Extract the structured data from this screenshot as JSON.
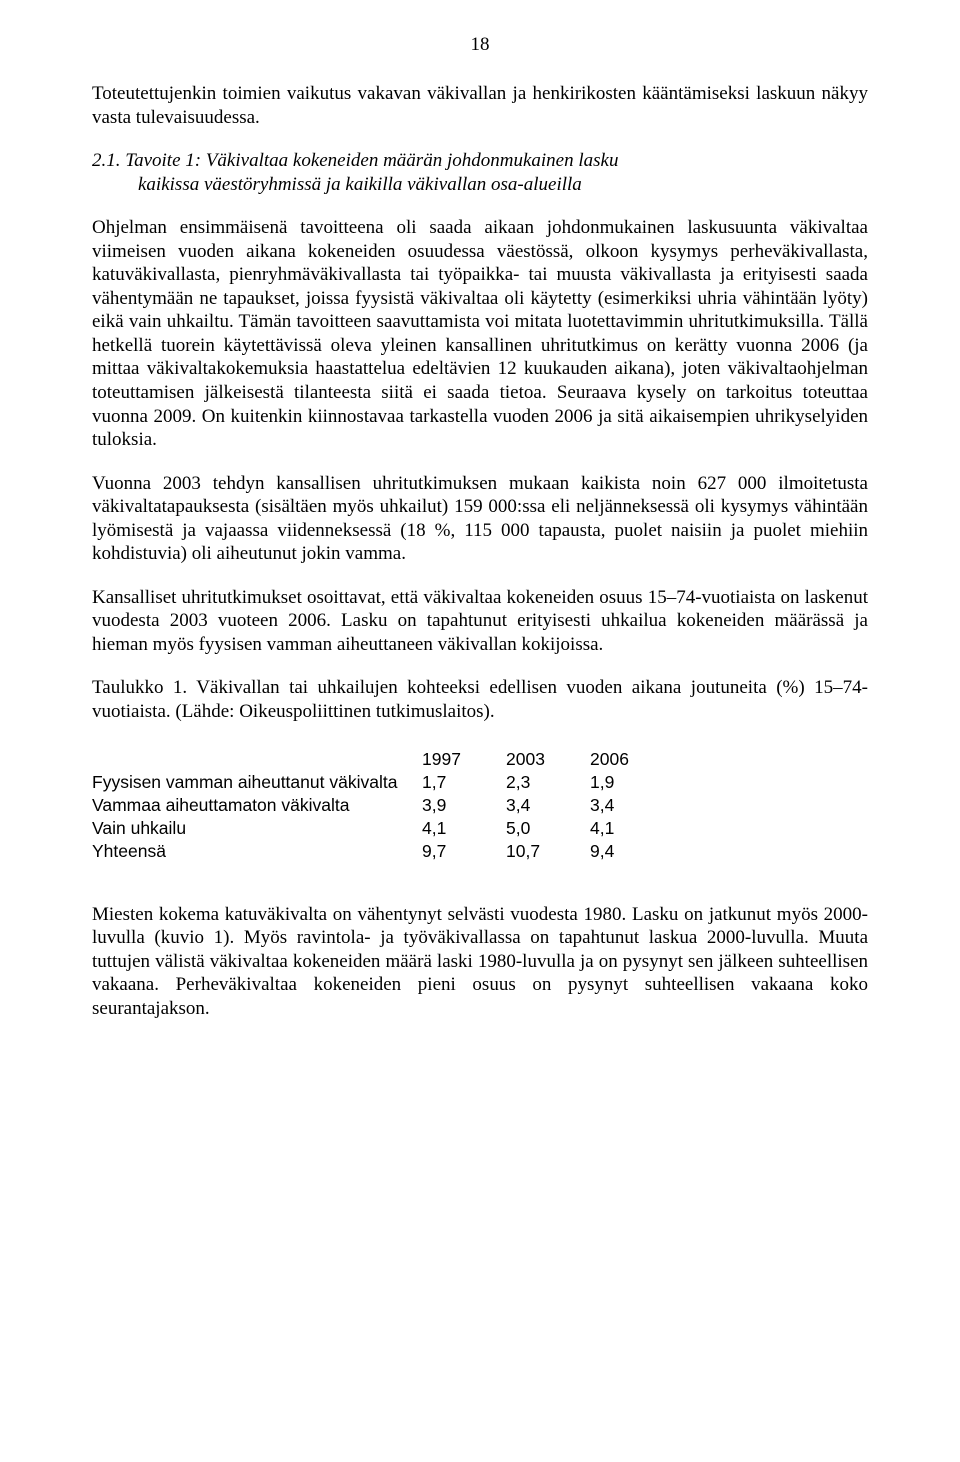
{
  "page_number": "18",
  "intro_para": "Toteutettujenkin toimien vaikutus vakavan väkivallan ja henkirikosten kääntämiseksi laskuun näkyy vasta tulevaisuudessa.",
  "heading": {
    "line1": "2.1. Tavoite 1: Väkivaltaa kokeneiden määrän johdonmukainen lasku",
    "line2": "kaikissa väestöryhmissä ja kaikilla väkivallan osa-alueilla"
  },
  "p1": "Ohjelman ensimmäisenä tavoitteena oli saada aikaan johdonmukainen laskusuunta väkivaltaa viimeisen vuoden aikana kokeneiden osuudessa väestössä, olkoon kysymys perheväkivallasta, katuväkivallasta, pienryhmäväkivallasta tai työpaikka- tai muusta väkivallasta ja erityisesti saada vähentymään ne tapaukset, joissa fyysistä väkivaltaa oli käytetty (esimerkiksi uhria vähintään lyöty) eikä vain uhkailtu. Tämän tavoitteen saavuttamista voi mitata luotettavimmin uhritutkimuksilla. Tällä hetkellä tuorein käytettävissä oleva yleinen kansallinen uhritutkimus on kerätty vuonna 2006 (ja mittaa väkivaltakokemuksia haastattelua edeltävien 12 kuukauden aikana), joten väkivaltaohjelman toteuttamisen jälkeisestä tilanteesta siitä ei saada tietoa. Seuraava kysely on tarkoitus toteuttaa vuonna 2009. On kuitenkin kiinnostavaa tarkastella vuoden 2006 ja sitä aikaisempien uhrikyselyiden tuloksia.",
  "p2": "Vuonna 2003 tehdyn kansallisen uhritutkimuksen mukaan kaikista noin 627 000 ilmoitetusta väkivaltatapauksesta (sisältäen myös uhkailut) 159 000:ssa eli neljänneksessä oli kysymys vähintään lyömisestä ja vajaassa viidenneksessä (18 %, 115 000 tapausta, puolet naisiin ja puolet miehiin kohdistuvia) oli aiheutunut jokin vamma.",
  "p3": "Kansalliset uhritutkimukset osoittavat, että väkivaltaa kokeneiden osuus 15–74-vuotiaista on laskenut vuodesta 2003 vuoteen 2006. Lasku on tapahtunut erityisesti uhkailua kokeneiden määrässä ja hieman myös fyysisen vamman aiheuttaneen väkivallan kokijoissa.",
  "table_caption": "Taulukko 1. Väkivallan tai uhkailujen kohteeksi edellisen vuoden aikana joutuneita (%) 15–74-vuotiaista. (Lähde: Oikeuspoliittinen tutkimuslaitos).",
  "table": {
    "headers": [
      "",
      "1997",
      "2003",
      "2006"
    ],
    "rows": [
      [
        "Fyysisen vamman aiheuttanut väkivalta",
        "1,7",
        "2,3",
        "1,9"
      ],
      [
        "Vammaa aiheuttamaton väkivalta",
        "3,9",
        "3,4",
        "3,4"
      ],
      [
        "Vain uhkailu",
        "4,1",
        "5,0",
        "4,1"
      ],
      [
        "Yhteensä",
        "9,7",
        "10,7",
        "9,4"
      ]
    ]
  },
  "p4": "Miesten kokema katuväkivalta on vähentynyt selvästi vuodesta 1980. Lasku on jatkunut myös 2000-luvulla (kuvio 1). Myös ravintola- ja työväkivallassa on tapahtunut laskua 2000-luvulla. Muuta tuttujen välistä väkivaltaa kokeneiden määrä laski 1980-luvulla ja on pysynyt sen jälkeen suhteellisen vakaana. Perheväkivaltaa kokeneiden pieni osuus on pysynyt suhteellisen vakaana koko seurantajakson."
}
